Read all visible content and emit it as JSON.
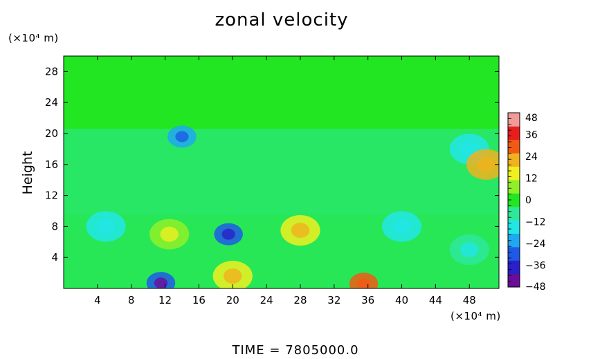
{
  "chart_data": {
    "type": "heatmap",
    "title": "zonal velocity",
    "ylabel": "Height",
    "x_unit": "(×10⁴ m)",
    "y_unit": "(×10⁴ m)",
    "xlim": [
      0,
      51.5
    ],
    "ylim": [
      0,
      30
    ],
    "x_ticks": [
      4,
      8,
      12,
      16,
      20,
      24,
      28,
      32,
      36,
      40,
      44,
      48
    ],
    "y_ticks": [
      4,
      8,
      12,
      16,
      20,
      24,
      28
    ],
    "colorbar": {
      "range": [
        -48,
        48
      ],
      "tick_values": [
        48,
        36,
        24,
        12,
        0,
        -12,
        -24,
        -36,
        -48
      ],
      "tick_labels": [
        "48",
        "36",
        "24",
        "12",
        "0",
        "−12",
        "−24",
        "−36",
        "−48"
      ],
      "colors": [
        "#6a0d9a",
        "#2a1fc8",
        "#1e5ae6",
        "#1fa8f0",
        "#22e6e6",
        "#2ee89a",
        "#22e622",
        "#8ff028",
        "#eef020",
        "#f0b21e",
        "#f05a14",
        "#e81e1e",
        "#f09a9a"
      ]
    },
    "features": [
      {
        "x": 19.5,
        "y": 7.0,
        "value": -30
      },
      {
        "x": 11.5,
        "y": 0.7,
        "value": -33
      },
      {
        "x": 35.5,
        "y": 0.6,
        "value": 26
      },
      {
        "x": 28.0,
        "y": 7.5,
        "value": 18
      },
      {
        "x": 20.0,
        "y": 1.6,
        "value": 16
      },
      {
        "x": 12.5,
        "y": 7.0,
        "value": 9
      },
      {
        "x": 5.0,
        "y": 8.0,
        "value": -12
      },
      {
        "x": 40.0,
        "y": 8.0,
        "value": -12
      },
      {
        "x": 48.0,
        "y": 5.0,
        "value": -10
      },
      {
        "x": 14.0,
        "y": 19.6,
        "value": -22
      },
      {
        "x": 48.0,
        "y": 18.0,
        "value": -14
      },
      {
        "x": 50.0,
        "y": 16.0,
        "value": 20
      }
    ]
  },
  "footer": {
    "label": "TIME",
    "equals": "=",
    "value": "7805000.0"
  }
}
